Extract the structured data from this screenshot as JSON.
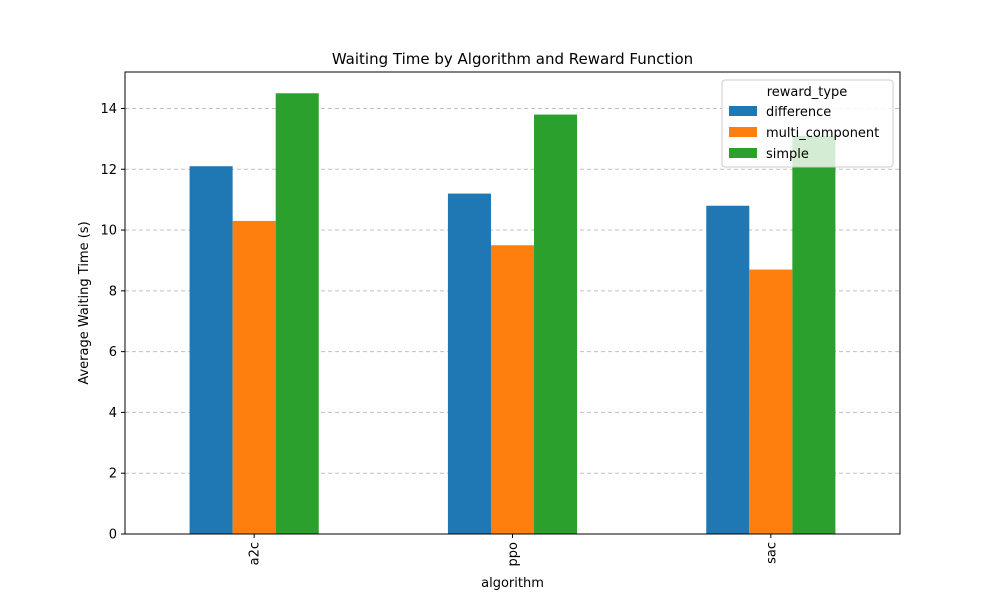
{
  "chart_data": {
    "type": "bar",
    "title": "Waiting Time by Algorithm and Reward Function",
    "xlabel": "algorithm",
    "ylabel": "Average Waiting Time (s)",
    "categories": [
      "a2c",
      "ppo",
      "sac"
    ],
    "ylim": [
      0,
      15.2
    ],
    "yticks": [
      0,
      2,
      4,
      6,
      8,
      10,
      12,
      14
    ],
    "grid": "y-dashed",
    "legend": {
      "title": "reward_type",
      "position": "top-right"
    },
    "series": [
      {
        "name": "difference",
        "color": "#1f77b4",
        "values": [
          12.1,
          11.2,
          10.8
        ]
      },
      {
        "name": "multi_component",
        "color": "#ff7f0e",
        "values": [
          10.3,
          9.5,
          8.7
        ]
      },
      {
        "name": "simple",
        "color": "#2ca02c",
        "values": [
          14.5,
          13.8,
          13.1
        ]
      }
    ]
  }
}
